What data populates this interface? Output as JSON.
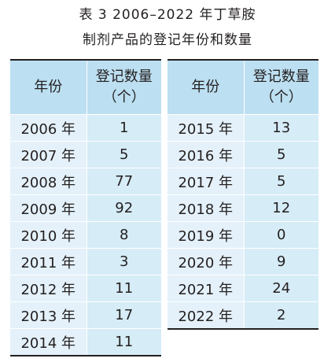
{
  "caption": {
    "line1": "表 3   2006–2022 年丁草胺",
    "line2": "制剂产品的登记年份和数量"
  },
  "table": {
    "headers": {
      "year": "年份",
      "count_line1": "登记数量",
      "count_line2": "（个）"
    },
    "left_rows": [
      {
        "year": "2006 年",
        "count": "1"
      },
      {
        "year": "2007 年",
        "count": "5"
      },
      {
        "year": "2008 年",
        "count": "77"
      },
      {
        "year": "2009 年",
        "count": "92"
      },
      {
        "year": "2010 年",
        "count": "8"
      },
      {
        "year": "2011 年",
        "count": "3"
      },
      {
        "year": "2012 年",
        "count": "11"
      },
      {
        "year": "2013 年",
        "count": "17"
      },
      {
        "year": "2014 年",
        "count": "11"
      }
    ],
    "right_rows": [
      {
        "year": "2015 年",
        "count": "13"
      },
      {
        "year": "2016 年",
        "count": "5"
      },
      {
        "year": "2017 年",
        "count": "5"
      },
      {
        "year": "2018 年",
        "count": "12"
      },
      {
        "year": "2019 年",
        "count": "0"
      },
      {
        "year": "2020 年",
        "count": "9"
      },
      {
        "year": "2021 年",
        "count": "24"
      },
      {
        "year": "2022 年",
        "count": "2"
      }
    ]
  },
  "colors": {
    "header_bg": "#bcdff1",
    "year_cell_bg": "#e4f1fa",
    "count_cell_bg": "#d6ecf7",
    "text": "#231f20"
  }
}
